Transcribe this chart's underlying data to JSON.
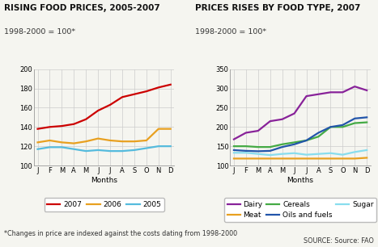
{
  "months": [
    "J",
    "F",
    "M",
    "A",
    "M",
    "J",
    "J",
    "A",
    "S",
    "O",
    "N",
    "D"
  ],
  "left_title": "RISING FOOD PRICES, 2005-2007",
  "left_subtitle": "1998-2000 = 100*",
  "right_title": "PRICES RISES BY FOOD TYPE, 2007",
  "right_subtitle": "1998-2000 = 100*",
  "left_xlabel": "Months",
  "right_xlabel": "Months",
  "left_ylim": [
    100,
    200
  ],
  "right_ylim": [
    100,
    350
  ],
  "left_yticks": [
    100,
    120,
    140,
    160,
    180,
    200
  ],
  "right_yticks": [
    100,
    150,
    200,
    250,
    300,
    350
  ],
  "year2007": [
    138,
    140,
    141,
    143,
    148,
    157,
    163,
    171,
    174,
    177,
    181,
    184
  ],
  "year2006": [
    124,
    126,
    124,
    123,
    125,
    128,
    126,
    125,
    125,
    126,
    138,
    138
  ],
  "year2005": [
    117,
    119,
    119,
    117,
    115,
    116,
    115,
    115,
    116,
    118,
    120,
    120
  ],
  "dairy": [
    168,
    185,
    190,
    215,
    220,
    235,
    280,
    285,
    290,
    290,
    305,
    295
  ],
  "meat": [
    118,
    118,
    118,
    118,
    118,
    118,
    118,
    118,
    118,
    118,
    118,
    120
  ],
  "cereals": [
    150,
    150,
    148,
    148,
    155,
    160,
    165,
    175,
    200,
    200,
    210,
    212
  ],
  "oils_fuels": [
    140,
    138,
    137,
    138,
    148,
    155,
    165,
    185,
    200,
    205,
    222,
    225
  ],
  "sugar": [
    133,
    133,
    130,
    127,
    130,
    132,
    128,
    130,
    132,
    128,
    135,
    140
  ],
  "color_2007": "#cc0000",
  "color_2006": "#e8a020",
  "color_2005": "#55bbdd",
  "color_dairy": "#882299",
  "color_meat": "#e8a020",
  "color_cereals": "#44aa44",
  "color_oils": "#2255aa",
  "color_sugar": "#88ddee",
  "footnote": "*Changes in price are indexed against the costs dating from 1998-2000",
  "source": "SOURCE: Source: FAO",
  "bg_color": "#f5f5f0",
  "grid_color": "#cccccc"
}
